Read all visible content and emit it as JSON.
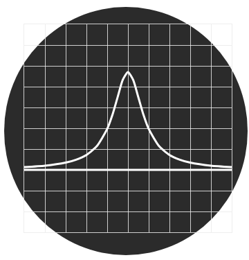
{
  "chart_data": {
    "type": "line",
    "x": [
      -5,
      -4,
      -3,
      -2.5,
      -2,
      -1.5,
      -1,
      -0.75,
      -0.5,
      -0.25,
      0,
      0.25,
      0.5,
      0.75,
      1,
      1.5,
      2,
      2.5,
      3,
      4,
      5
    ],
    "series": [
      {
        "color": "#ffffff",
        "values": [
          -1.87,
          -1.8,
          -1.65,
          -1.51,
          -1.28,
          -0.86,
          -0.03,
          0.64,
          1.49,
          2.33,
          2.7,
          2.33,
          1.49,
          0.64,
          -0.03,
          -0.86,
          -1.28,
          -1.51,
          -1.65,
          -1.8,
          -1.87
        ]
      },
      {
        "color": "#ffffff",
        "values": [
          -2,
          -2,
          -2,
          -2,
          -2,
          -2,
          -2,
          -2,
          -2,
          -2,
          -2,
          -2,
          -2,
          -2,
          -2,
          -2,
          -2,
          -2,
          -2,
          -2,
          -2
        ]
      }
    ],
    "xlim": [
      -5,
      5
    ],
    "xticks": [
      -5,
      -4,
      -3,
      -2,
      -1,
      0,
      1,
      2,
      3,
      4,
      5
    ],
    "ylim": [
      -5,
      5
    ],
    "yticks": [
      -5,
      -4,
      -3,
      -2,
      -1,
      0,
      1,
      2,
      3,
      4,
      5
    ],
    "grid": true,
    "tick_labels": false
  }
}
